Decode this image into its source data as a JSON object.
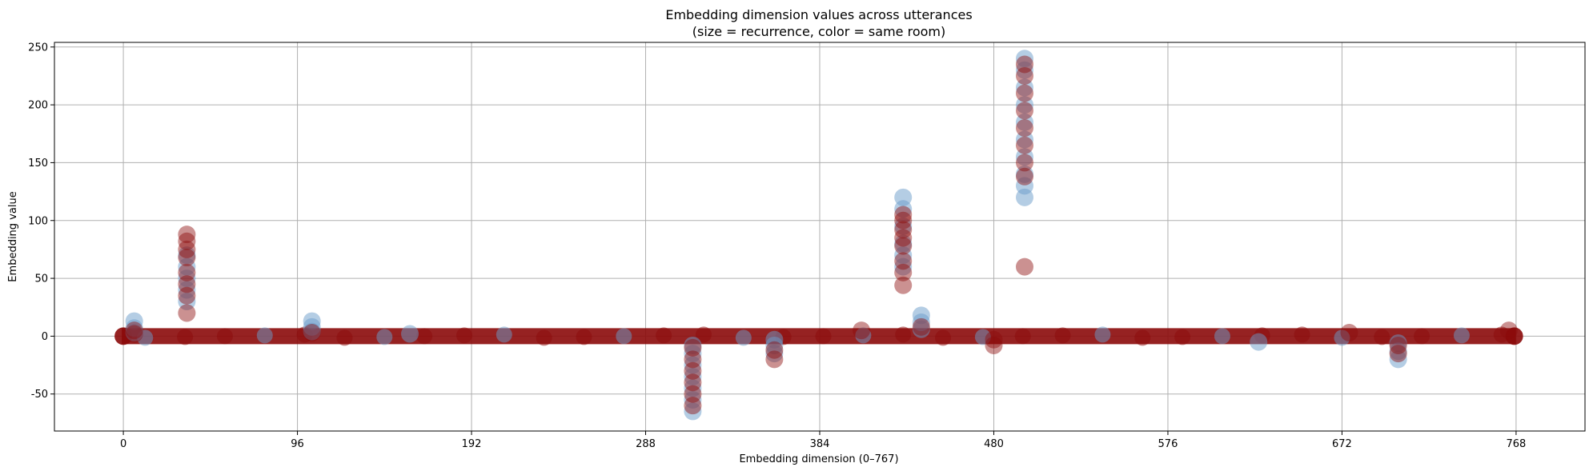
{
  "chart_data": {
    "type": "scatter",
    "title": "Embedding dimension values across utterances",
    "subtitle": "(size = recurrence, color = same room)",
    "xlabel": "Embedding dimension (0–767)",
    "ylabel": "Embedding value",
    "xlim": [
      -38,
      806
    ],
    "ylim": [
      -82,
      254
    ],
    "xticks": [
      0,
      96,
      192,
      288,
      384,
      480,
      576,
      672,
      768
    ],
    "yticks": [
      -50,
      0,
      50,
      100,
      150,
      200,
      250
    ],
    "grid": true,
    "legend": "none",
    "colors": {
      "blue": "#6a9bc9",
      "red": "#8b0a0a",
      "axis": "#000000",
      "grid": "#b0b0b0"
    },
    "baseline": {
      "x_range": [
        0,
        767
      ],
      "y": 0
    },
    "series": [
      {
        "color_key": "blue",
        "points": [
          [
            6,
            13
          ],
          [
            6,
            7
          ],
          [
            6,
            3
          ],
          [
            35,
            70
          ],
          [
            35,
            60
          ],
          [
            35,
            50
          ],
          [
            35,
            40
          ],
          [
            35,
            30
          ],
          [
            104,
            13
          ],
          [
            104,
            8
          ],
          [
            104,
            4
          ],
          [
            158,
            2
          ],
          [
            314,
            -65
          ],
          [
            314,
            -55
          ],
          [
            314,
            -45
          ],
          [
            314,
            -35
          ],
          [
            314,
            -25
          ],
          [
            314,
            -15
          ],
          [
            314,
            -8
          ],
          [
            359,
            -15
          ],
          [
            359,
            -8
          ],
          [
            359,
            -3
          ],
          [
            430,
            120
          ],
          [
            430,
            110
          ],
          [
            430,
            95
          ],
          [
            430,
            80
          ],
          [
            430,
            70
          ],
          [
            430,
            60
          ],
          [
            440,
            18
          ],
          [
            440,
            12
          ],
          [
            440,
            6
          ],
          [
            497,
            240
          ],
          [
            497,
            230
          ],
          [
            497,
            215
          ],
          [
            497,
            200
          ],
          [
            497,
            185
          ],
          [
            497,
            170
          ],
          [
            497,
            155
          ],
          [
            497,
            140
          ],
          [
            497,
            130
          ],
          [
            497,
            120
          ],
          [
            626,
            -5
          ],
          [
            703,
            -20
          ],
          [
            703,
            -13
          ],
          [
            703,
            -6
          ]
        ]
      },
      {
        "color_key": "red",
        "points": [
          [
            6,
            5
          ],
          [
            6,
            2
          ],
          [
            35,
            88
          ],
          [
            35,
            82
          ],
          [
            35,
            75
          ],
          [
            35,
            68
          ],
          [
            35,
            55
          ],
          [
            35,
            45
          ],
          [
            35,
            35
          ],
          [
            35,
            20
          ],
          [
            104,
            3
          ],
          [
            314,
            -60
          ],
          [
            314,
            -50
          ],
          [
            314,
            -40
          ],
          [
            314,
            -30
          ],
          [
            314,
            -20
          ],
          [
            314,
            -10
          ],
          [
            359,
            -20
          ],
          [
            359,
            -12
          ],
          [
            407,
            5
          ],
          [
            430,
            105
          ],
          [
            430,
            100
          ],
          [
            430,
            92
          ],
          [
            430,
            85
          ],
          [
            430,
            78
          ],
          [
            430,
            65
          ],
          [
            430,
            55
          ],
          [
            430,
            44
          ],
          [
            440,
            8
          ],
          [
            480,
            -8
          ],
          [
            480,
            -3
          ],
          [
            497,
            235
          ],
          [
            497,
            225
          ],
          [
            497,
            210
          ],
          [
            497,
            195
          ],
          [
            497,
            180
          ],
          [
            497,
            165
          ],
          [
            497,
            150
          ],
          [
            497,
            138
          ],
          [
            497,
            60
          ],
          [
            676,
            3
          ],
          [
            703,
            -15
          ],
          [
            703,
            -8
          ],
          [
            764,
            5
          ]
        ]
      }
    ]
  }
}
